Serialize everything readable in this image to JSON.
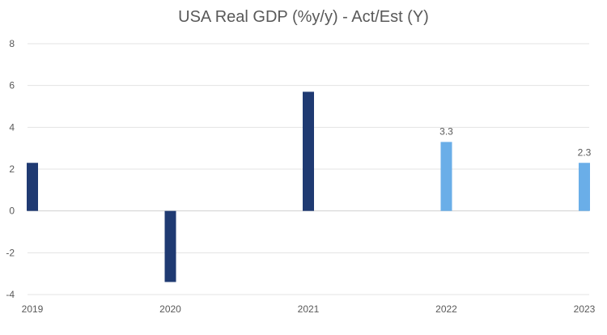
{
  "chart_data": {
    "type": "bar",
    "title": "USA Real GDP (%y/y) - Act/Est (Y)",
    "xlabel": "",
    "ylabel": "",
    "categories": [
      "2019",
      "2020",
      "2021",
      "2022",
      "2023"
    ],
    "ylim": [
      -4,
      8
    ],
    "yticks": [
      -4,
      -2,
      0,
      2,
      4,
      6,
      8
    ],
    "grid": true,
    "legend": "none",
    "series": [
      {
        "values": [
          2.3,
          -3.4,
          5.7,
          3.3,
          2.3
        ],
        "colors": [
          "#1f3a72",
          "#1f3a72",
          "#1f3a72",
          "#6aaee8",
          "#6aaee8"
        ],
        "data_labels": [
          "",
          "",
          "",
          "3.3",
          "2.3"
        ]
      }
    ]
  }
}
